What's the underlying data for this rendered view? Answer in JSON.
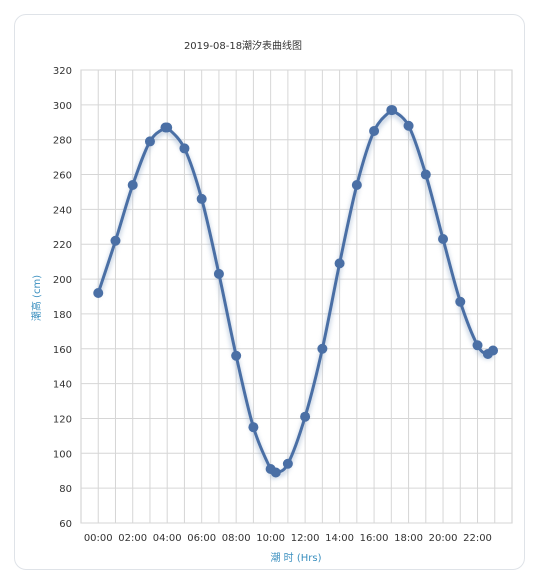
{
  "chart_data": {
    "type": "line",
    "title": "2019-08-18潮汐表曲线图",
    "xlabel": "潮 时 (Hrs)",
    "ylabel": "潮高 (cm)",
    "ylim": [
      60,
      320
    ],
    "xlim": [
      -1,
      24
    ],
    "yticks": [
      60,
      80,
      100,
      120,
      140,
      160,
      180,
      200,
      220,
      240,
      260,
      280,
      300,
      320
    ],
    "xticks": [
      "00:00",
      "02:00",
      "04:00",
      "06:00",
      "08:00",
      "10:00",
      "12:00",
      "14:00",
      "16:00",
      "18:00",
      "20:00",
      "22:00"
    ],
    "grid": true,
    "color": "#4a6fa5",
    "x": [
      0,
      1,
      2,
      3,
      3.9,
      4,
      5,
      6,
      7,
      8,
      9,
      10,
      10.3,
      11,
      12,
      13,
      14,
      15,
      16,
      17,
      17.05,
      18,
      19,
      20,
      21,
      22,
      22.6,
      22.9
    ],
    "values": [
      192,
      222,
      254,
      279,
      287,
      287,
      275,
      246,
      203,
      156,
      115,
      91,
      89,
      94,
      121,
      160,
      209,
      254,
      285,
      297,
      297,
      288,
      260,
      223,
      187,
      162,
      157,
      159
    ]
  }
}
